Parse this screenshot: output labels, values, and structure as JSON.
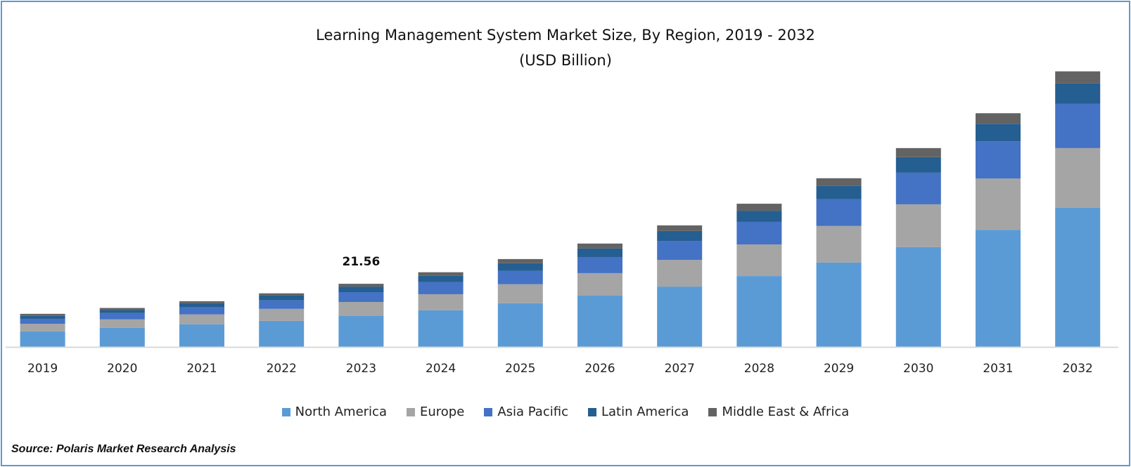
{
  "chart_data": {
    "type": "bar",
    "stacked": true,
    "title": "Learning Management System Market  Size, By Region, 2019 - 2032",
    "subtitle": "(USD Billion)",
    "categories": [
      "2019",
      "2020",
      "2021",
      "2022",
      "2023",
      "2024",
      "2025",
      "2026",
      "2027",
      "2028",
      "2029",
      "2030",
      "2031",
      "2032"
    ],
    "series": [
      {
        "name": "North America",
        "color": "#5B9BD5",
        "values": [
          5.3,
          6.5,
          7.7,
          8.9,
          10.55,
          12.5,
          14.9,
          17.5,
          20.6,
          24.2,
          28.8,
          34.1,
          40.0,
          47.5
        ]
      },
      {
        "name": "Europe",
        "color": "#A5A5A5",
        "values": [
          2.6,
          2.9,
          3.4,
          4.1,
          4.8,
          5.5,
          6.5,
          7.7,
          9.1,
          10.8,
          12.5,
          14.6,
          17.5,
          20.4
        ]
      },
      {
        "name": "Asia Pacific",
        "color": "#4472C4",
        "values": [
          1.7,
          2.2,
          2.4,
          2.9,
          3.35,
          4.1,
          4.6,
          5.5,
          6.5,
          7.7,
          9.1,
          10.8,
          12.7,
          15.1
        ]
      },
      {
        "name": "Latin America",
        "color": "#255E91",
        "values": [
          1.0,
          1.0,
          1.4,
          1.7,
          1.9,
          2.2,
          2.6,
          2.9,
          3.4,
          3.8,
          4.6,
          5.3,
          6.0,
          7.0
        ]
      },
      {
        "name": "Middle East & Africa",
        "color": "#636363",
        "values": [
          0.7,
          0.7,
          0.7,
          0.7,
          0.96,
          1.2,
          1.4,
          1.7,
          1.9,
          2.4,
          2.6,
          3.1,
          3.6,
          4.1
        ]
      }
    ],
    "annotations": [
      {
        "category": "2023",
        "text": "21.56"
      }
    ],
    "ylim": [
      0,
      100
    ],
    "grid": false,
    "y_axis_visible": false,
    "legend_placement": "bottom"
  },
  "source": "Source: Polaris Market Research Analysis"
}
